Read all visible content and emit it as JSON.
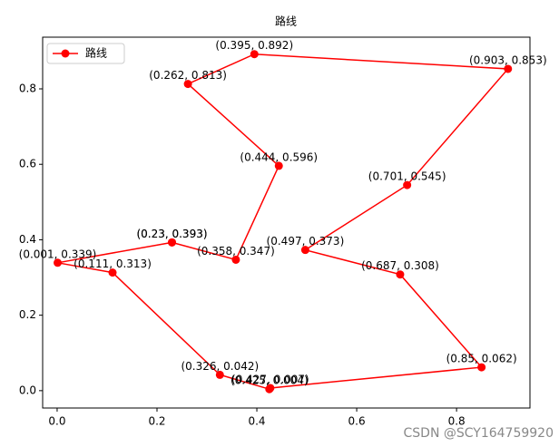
{
  "chart_data": {
    "type": "line",
    "title": "路线",
    "series": [
      {
        "name": "路线",
        "color": "#ff0000",
        "x": [
          0.23,
          0.358,
          0.444,
          0.262,
          0.395,
          0.903,
          0.701,
          0.497,
          0.687,
          0.85,
          0.427,
          0.425,
          0.326,
          0.111,
          0.001,
          0.23
        ],
        "values": [
          0.393,
          0.347,
          0.596,
          0.813,
          0.892,
          0.853,
          0.545,
          0.373,
          0.308,
          0.062,
          0.007,
          0.004,
          0.042,
          0.313,
          0.339,
          0.393
        ],
        "value_labels": [
          "(0.23, 0.393)",
          "(0.358, 0.347)",
          "(0.444, 0.596)",
          "(0.262, 0.813)",
          "(0.395, 0.892)",
          "(0.903, 0.853)",
          "(0.701, 0.545)",
          "(0.497, 0.373)",
          "(0.687, 0.308)",
          "(0.85, 0.062)",
          "(0.427, 0.007)",
          "(0.425, 0.004)",
          "(0.326, 0.042)",
          "(0.111, 0.313)",
          "(0.001, 0.339)",
          "(0.23, 0.393)"
        ]
      }
    ],
    "xlim": [
      -0.029,
      0.947
    ],
    "ylim": [
      -0.046,
      0.937
    ],
    "xticks": [
      {
        "value": 0,
        "label": "0.0"
      },
      {
        "value": 0.2,
        "label": "0.2"
      },
      {
        "value": 0.4,
        "label": "0.4"
      },
      {
        "value": 0.6,
        "label": "0.6"
      },
      {
        "value": 0.8,
        "label": "0.8"
      }
    ],
    "yticks": [
      {
        "value": 0,
        "label": "0.0"
      },
      {
        "value": 0.2,
        "label": "0.2"
      },
      {
        "value": 0.4,
        "label": "0.4"
      },
      {
        "value": 0.6,
        "label": "0.6"
      },
      {
        "value": 0.8,
        "label": "0.8"
      }
    ],
    "legend": "upper left",
    "watermark": "CSDN @SCY164759920"
  }
}
